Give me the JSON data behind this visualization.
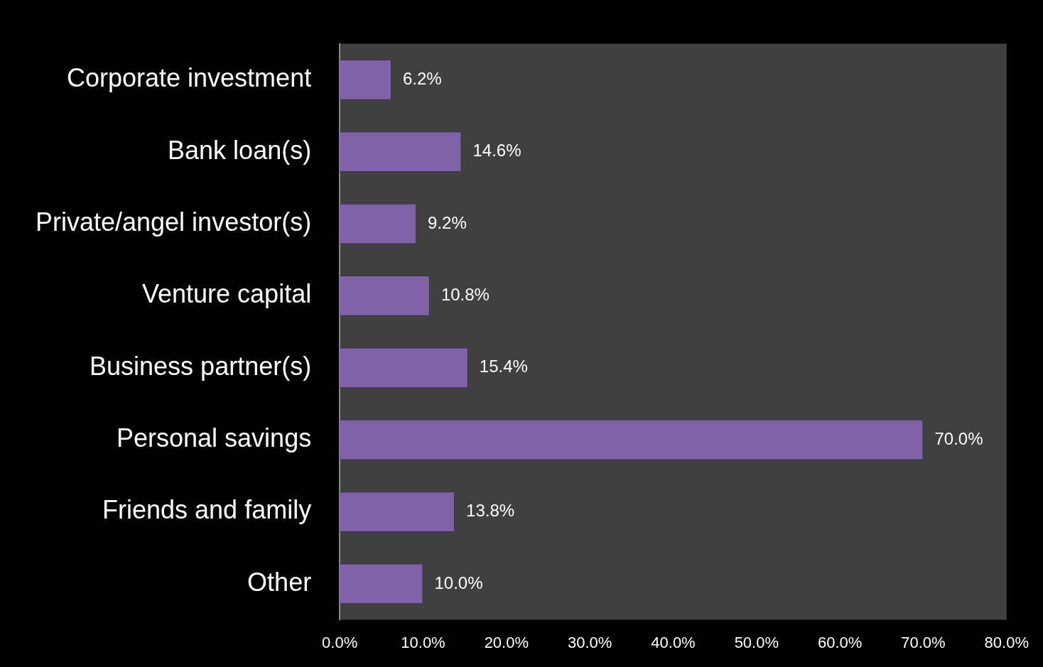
{
  "chart_data": {
    "type": "bar",
    "orientation": "horizontal",
    "categories": [
      "Corporate investment",
      "Bank loan(s)",
      "Private/angel investor(s)",
      "Venture capital",
      "Business partner(s)",
      "Personal savings",
      "Friends and family",
      "Other"
    ],
    "values": [
      6.2,
      14.6,
      9.2,
      10.8,
      15.4,
      70.0,
      13.8,
      10.0
    ],
    "value_labels": [
      "6.2%",
      "14.6%",
      "9.2%",
      "10.8%",
      "15.4%",
      "70.0%",
      "13.8%",
      "10.0%"
    ],
    "color": "#7f62a8",
    "xlim": [
      0,
      80
    ],
    "xticks": [
      {
        "value": 0,
        "label": "0.0%"
      },
      {
        "value": 10,
        "label": "10.0%"
      },
      {
        "value": 20,
        "label": "20.0%"
      },
      {
        "value": 30,
        "label": "30.0%"
      },
      {
        "value": 40,
        "label": "40.0%"
      },
      {
        "value": 50,
        "label": "50.0%"
      },
      {
        "value": 60,
        "label": "60.0%"
      },
      {
        "value": 70,
        "label": "70.0%"
      },
      {
        "value": 80,
        "label": "80.0%"
      }
    ],
    "grid": false,
    "legend": false
  }
}
